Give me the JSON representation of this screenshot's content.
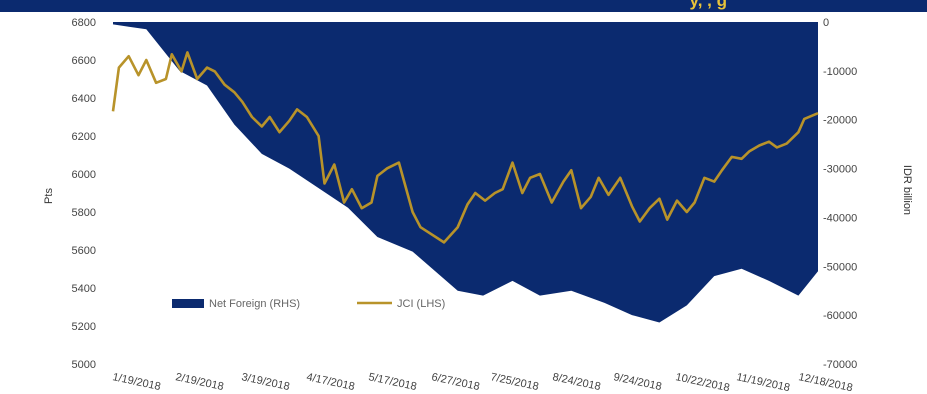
{
  "header": {
    "title_fragment": "y, , g"
  },
  "colors": {
    "banner": "#0b2a6f",
    "banner_text": "#e8c33a",
    "area": "#0b2a6f",
    "line": "#b8932a"
  },
  "chart_data": {
    "type": "area",
    "title": "",
    "ylabel": "Pts",
    "y2label": "IDR billion",
    "ylim": [
      5000,
      6800
    ],
    "y2lim": [
      -70000,
      0
    ],
    "yticks": [
      5000,
      5200,
      5400,
      5600,
      5800,
      6000,
      6200,
      6400,
      6600,
      6800
    ],
    "y2ticks": [
      -70000,
      -60000,
      -50000,
      -40000,
      -30000,
      -20000,
      -10000,
      0
    ],
    "y2tick_labels": [
      "-70000",
      "-60000",
      "-50000",
      "-40000",
      "-30000",
      "-20000",
      "-10000",
      "0"
    ],
    "xtick_labels": [
      "1/19/2018",
      "2/19/2018",
      "3/19/2018",
      "4/17/2018",
      "5/17/2018",
      "6/27/2018",
      "7/25/2018",
      "8/24/2018",
      "9/24/2018",
      "10/22/2018",
      "11/19/2018",
      "12/18/2018"
    ],
    "legend_position": "bottom",
    "grid": false,
    "series": [
      {
        "name": "Net Foreign (RHS)",
        "type": "area",
        "axis": "right",
        "x": [
          "1/2/2018",
          "1/19/2018",
          "2/5/2018",
          "2/19/2018",
          "3/5/2018",
          "3/19/2018",
          "4/2/2018",
          "4/17/2018",
          "5/2/2018",
          "5/17/2018",
          "6/4/2018",
          "6/27/2018",
          "7/10/2018",
          "7/25/2018",
          "8/8/2018",
          "8/24/2018",
          "9/10/2018",
          "9/24/2018",
          "10/8/2018",
          "10/22/2018",
          "11/5/2018",
          "11/19/2018",
          "12/3/2018",
          "12/18/2018",
          "12/28/2018"
        ],
        "values": [
          -500,
          -1500,
          -10000,
          -13000,
          -21000,
          -27000,
          -30000,
          -34000,
          -38000,
          -44000,
          -47000,
          -55000,
          -56000,
          -53000,
          -56000,
          -55000,
          -57500,
          -60000,
          -61500,
          -58000,
          -52000,
          -50500,
          -53000,
          -56000,
          -51000
        ]
      },
      {
        "name": "JCI (LHS)",
        "type": "line",
        "axis": "left",
        "x": [
          "1/2/2018",
          "1/5/2018",
          "1/10/2018",
          "1/15/2018",
          "1/19/2018",
          "1/24/2018",
          "1/29/2018",
          "2/1/2018",
          "2/6/2018",
          "2/9/2018",
          "2/14/2018",
          "2/19/2018",
          "2/23/2018",
          "2/28/2018",
          "3/5/2018",
          "3/9/2018",
          "3/14/2018",
          "3/19/2018",
          "3/23/2018",
          "3/28/2018",
          "4/2/2018",
          "4/6/2018",
          "4/11/2018",
          "4/17/2018",
          "4/20/2018",
          "4/25/2018",
          "4/30/2018",
          "5/4/2018",
          "5/9/2018",
          "5/14/2018",
          "5/17/2018",
          "5/22/2018",
          "5/28/2018",
          "6/4/2018",
          "6/8/2018",
          "6/20/2018",
          "6/27/2018",
          "7/2/2018",
          "7/6/2018",
          "7/11/2018",
          "7/16/2018",
          "7/20/2018",
          "7/25/2018",
          "7/30/2018",
          "8/3/2018",
          "8/8/2018",
          "8/14/2018",
          "8/20/2018",
          "8/24/2018",
          "8/29/2018",
          "9/3/2018",
          "9/7/2018",
          "9/12/2018",
          "9/18/2018",
          "9/24/2018",
          "9/28/2018",
          "10/3/2018",
          "10/8/2018",
          "10/12/2018",
          "10/17/2018",
          "10/22/2018",
          "10/26/2018",
          "10/31/2018",
          "11/5/2018",
          "11/9/2018",
          "11/14/2018",
          "11/19/2018",
          "11/23/2018",
          "11/28/2018",
          "12/3/2018",
          "12/7/2018",
          "12/12/2018",
          "12/18/2018",
          "12/21/2018",
          "12/28/2018"
        ],
        "values": [
          6330,
          6560,
          6620,
          6520,
          6600,
          6480,
          6500,
          6630,
          6540,
          6640,
          6500,
          6560,
          6540,
          6470,
          6430,
          6380,
          6300,
          6250,
          6300,
          6220,
          6280,
          6340,
          6300,
          6200,
          5950,
          6050,
          5850,
          5920,
          5820,
          5850,
          5990,
          6030,
          6060,
          5800,
          5720,
          5640,
          5720,
          5840,
          5900,
          5860,
          5900,
          5920,
          6060,
          5900,
          5980,
          6000,
          5850,
          5960,
          6020,
          5820,
          5880,
          5980,
          5890,
          5980,
          5830,
          5750,
          5820,
          5870,
          5760,
          5860,
          5800,
          5850,
          5980,
          5960,
          6020,
          6090,
          6080,
          6120,
          6150,
          6170,
          6140,
          6160,
          6220,
          6290,
          6320
        ]
      }
    ]
  }
}
